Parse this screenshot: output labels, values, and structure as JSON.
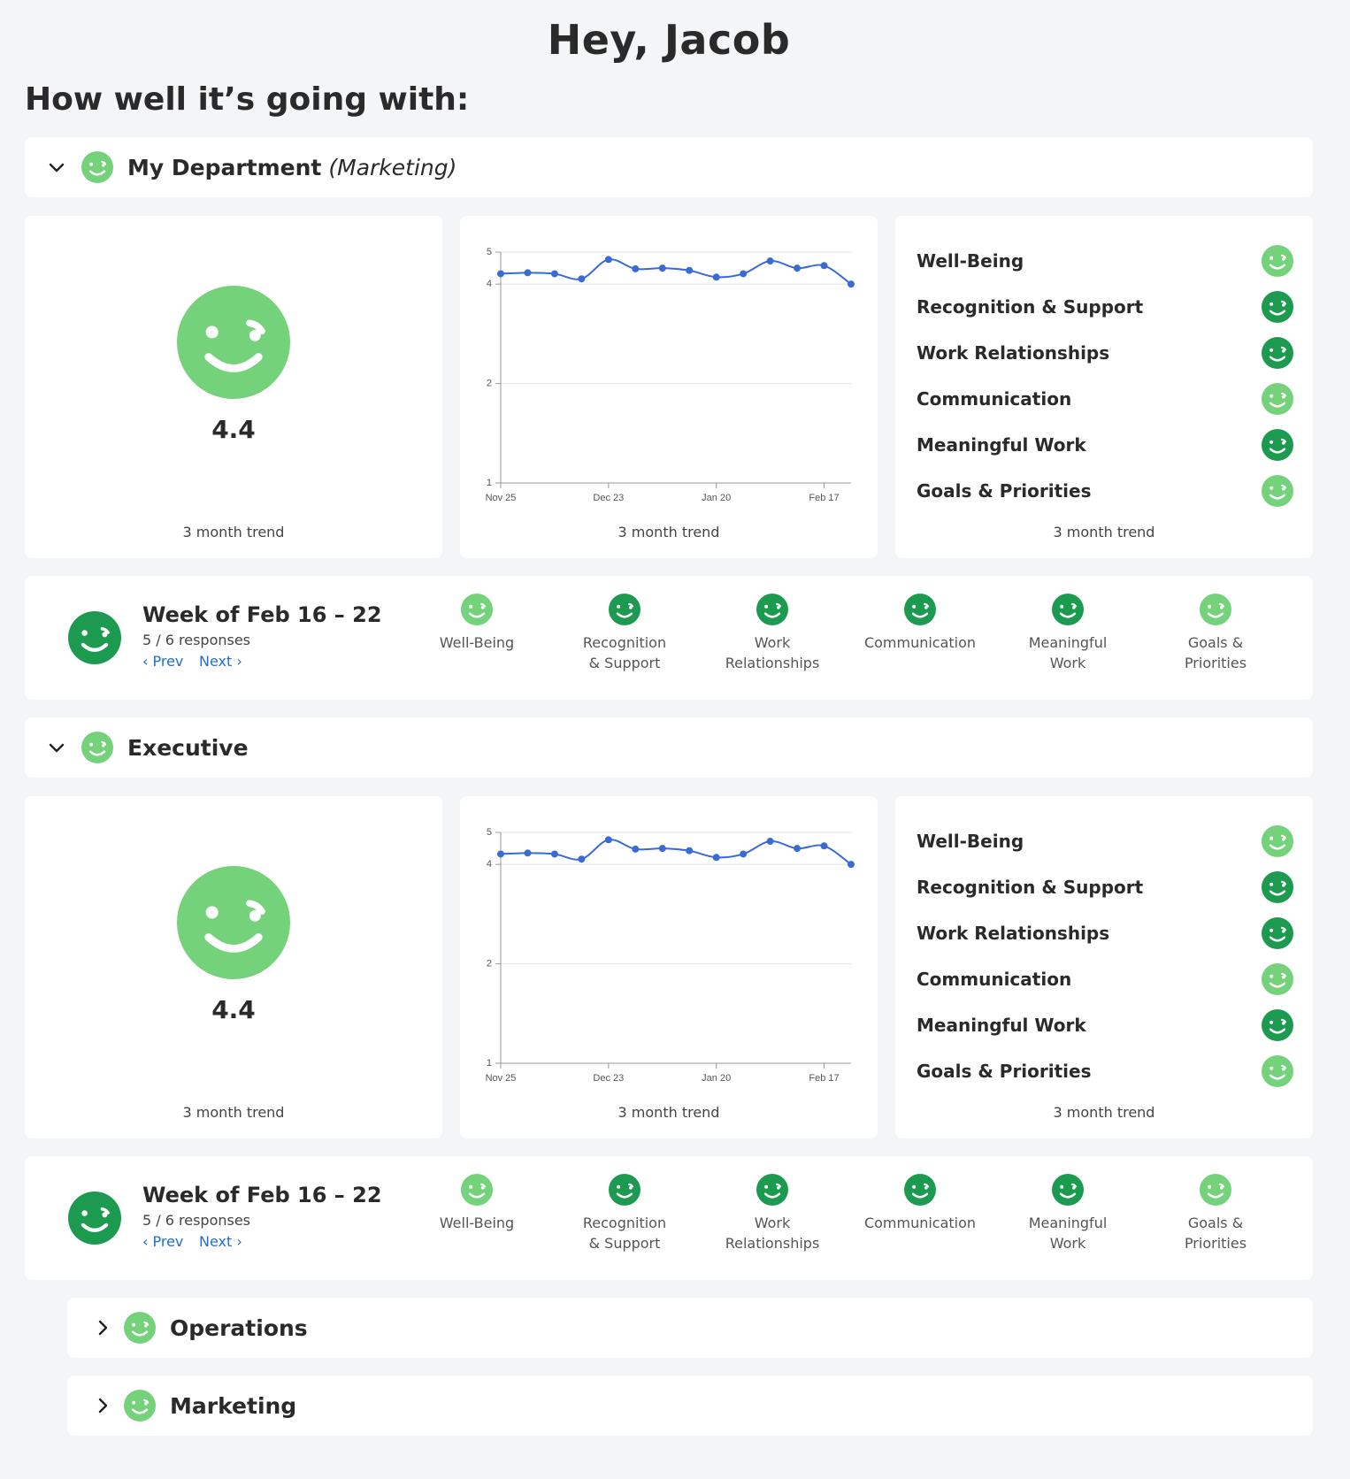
{
  "greeting": "Hey, Jacob",
  "subheading": "How well it’s going with:",
  "colors": {
    "light_green": "#74d27b",
    "dark_green": "#1c9a4f",
    "line_blue": "#3a6ad4"
  },
  "sections": [
    {
      "title": "My Department",
      "subtitle": "(Marketing)",
      "expanded": true,
      "score": "4.4",
      "score_trend_label": "3 month trend",
      "chart_trend_label": "3 month trend",
      "categories_trend_label": "3 month trend",
      "categories": [
        {
          "label": "Well-Being",
          "mood": "light"
        },
        {
          "label": "Recognition & Support",
          "mood": "dark"
        },
        {
          "label": "Work Relationships",
          "mood": "dark"
        },
        {
          "label": "Communication",
          "mood": "light"
        },
        {
          "label": "Meaningful Work",
          "mood": "dark"
        },
        {
          "label": "Goals & Priorities",
          "mood": "light"
        }
      ],
      "week": {
        "title": "Week of Feb 16 – 22",
        "responses": "5 / 6 responses",
        "prev": "‹ Prev",
        "next": "Next ›",
        "items": [
          {
            "line1": "Well-Being",
            "line2": "",
            "mood": "light"
          },
          {
            "line1": "Recognition",
            "line2": "& Support",
            "mood": "dark"
          },
          {
            "line1": "Work",
            "line2": "Relationships",
            "mood": "dark"
          },
          {
            "line1": "Communication",
            "line2": "",
            "mood": "dark"
          },
          {
            "line1": "Meaningful",
            "line2": "Work",
            "mood": "dark"
          },
          {
            "line1": "Goals &",
            "line2": "Priorities",
            "mood": "light"
          }
        ]
      }
    },
    {
      "title": "Executive",
      "subtitle": "",
      "expanded": true,
      "score": "4.4",
      "score_trend_label": "3 month trend",
      "chart_trend_label": "3 month trend",
      "categories_trend_label": "3 month trend",
      "categories": [
        {
          "label": "Well-Being",
          "mood": "light"
        },
        {
          "label": "Recognition & Support",
          "mood": "dark"
        },
        {
          "label": "Work Relationships",
          "mood": "dark"
        },
        {
          "label": "Communication",
          "mood": "light"
        },
        {
          "label": "Meaningful Work",
          "mood": "dark"
        },
        {
          "label": "Goals & Priorities",
          "mood": "light"
        }
      ],
      "week": {
        "title": "Week of Feb 16 – 22",
        "responses": "5 / 6 responses",
        "prev": "‹ Prev",
        "next": "Next ›",
        "items": [
          {
            "line1": "Well-Being",
            "line2": "",
            "mood": "light"
          },
          {
            "line1": "Recognition",
            "line2": "& Support",
            "mood": "dark"
          },
          {
            "line1": "Work",
            "line2": "Relationships",
            "mood": "dark"
          },
          {
            "line1": "Communication",
            "line2": "",
            "mood": "dark"
          },
          {
            "line1": "Meaningful",
            "line2": "Work",
            "mood": "dark"
          },
          {
            "line1": "Goals &",
            "line2": "Priorities",
            "mood": "light"
          }
        ]
      }
    }
  ],
  "collapsed_sections": [
    {
      "title": "Operations"
    },
    {
      "title": "Marketing"
    }
  ],
  "chart_data": [
    {
      "type": "line",
      "x": [
        "Nov 25",
        "Dec 2",
        "Dec 9",
        "Dec 16",
        "Dec 23",
        "Dec 30",
        "Jan 6",
        "Jan 13",
        "Jan 20",
        "Jan 27",
        "Feb 3",
        "Feb 10",
        "Feb 17",
        "Feb 24"
      ],
      "x_ticks": [
        "Nov 25",
        "Dec 23",
        "Jan 20",
        "Feb 17"
      ],
      "y_ticks": [
        1,
        2,
        4,
        5
      ],
      "ylim": [
        1,
        5
      ],
      "y_scale": "log",
      "values": [
        4.3,
        4.33,
        4.3,
        4.15,
        4.75,
        4.45,
        4.47,
        4.4,
        4.2,
        4.3,
        4.7,
        4.47,
        4.55,
        4.0
      ],
      "grid": true
    },
    {
      "type": "line",
      "x": [
        "Nov 25",
        "Dec 2",
        "Dec 9",
        "Dec 16",
        "Dec 23",
        "Dec 30",
        "Jan 6",
        "Jan 13",
        "Jan 20",
        "Jan 27",
        "Feb 3",
        "Feb 10",
        "Feb 17",
        "Feb 24"
      ],
      "x_ticks": [
        "Nov 25",
        "Dec 23",
        "Jan 20",
        "Feb 17"
      ],
      "y_ticks": [
        1,
        2,
        4,
        5
      ],
      "ylim": [
        1,
        5
      ],
      "y_scale": "log",
      "values": [
        4.3,
        4.33,
        4.3,
        4.15,
        4.75,
        4.45,
        4.47,
        4.4,
        4.2,
        4.3,
        4.7,
        4.47,
        4.55,
        4.0
      ],
      "grid": true
    }
  ]
}
